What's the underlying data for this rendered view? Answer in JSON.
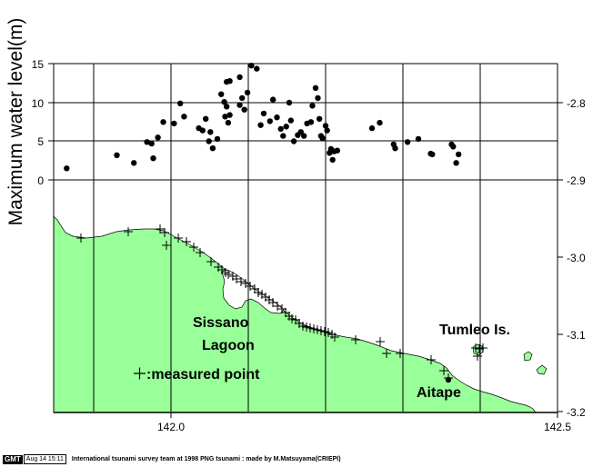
{
  "y_axis": {
    "label": "Maximum water level(m)",
    "ticks": [
      "15",
      "10",
      "5",
      "0"
    ]
  },
  "right_axis": {
    "ticks": [
      "-2.8",
      "-2.9",
      "-3.0",
      "-3.1",
      "-3.2"
    ]
  },
  "x_axis": {
    "ticks": [
      "142.0",
      "142.5"
    ]
  },
  "labels": {
    "lagoon_line1": "Sissano",
    "lagoon_line2": "Lagoon",
    "tumleo": "Tumleo Is.",
    "aitape": "Aitape",
    "legend": ":measured point"
  },
  "colors": {
    "land": "#99FF99",
    "grid": "#000000",
    "points": "#000000"
  },
  "footer": {
    "badge": "GMT",
    "date": "Aug 14 15:11",
    "credit": "International tsunami survey team at 1998 PNG tsunami : made by M.Matsuyama(CRIEPI)"
  },
  "chart_data": {
    "type": "scatter",
    "xlim": [
      141.83,
      142.5
    ],
    "ylim_water_level_m": [
      0,
      15
    ],
    "ylim_latitude": [
      -3.2,
      -2.75
    ],
    "x_ticks": [
      142.0,
      142.5
    ],
    "water_level_ticks": [
      0,
      5,
      10,
      15
    ],
    "latitude_ticks": [
      -2.8,
      -2.9,
      -3.0,
      -3.1,
      -3.2
    ],
    "grid": true,
    "series": [
      {
        "values": [
          [
            141.865,
            1.5
          ],
          [
            141.93,
            3.2
          ],
          [
            141.952,
            2.2
          ],
          [
            141.969,
            4.9
          ],
          [
            141.975,
            4.7
          ],
          [
            141.977,
            2.8
          ],
          [
            141.983,
            5.5
          ],
          [
            141.99,
            7.5
          ],
          [
            142.004,
            7.3
          ],
          [
            142.012,
            9.9
          ],
          [
            142.017,
            8.2
          ],
          [
            142.036,
            6.7
          ],
          [
            142.041,
            6.4
          ],
          [
            142.045,
            7.9
          ],
          [
            142.049,
            5.0
          ],
          [
            142.051,
            6.2
          ],
          [
            142.054,
            4.1
          ],
          [
            142.06,
            5.3
          ],
          [
            142.065,
            11.1
          ],
          [
            142.069,
            10.1
          ],
          [
            142.072,
            12.7
          ],
          [
            142.076,
            12.8
          ],
          [
            142.072,
            9.5
          ],
          [
            142.07,
            8.2
          ],
          [
            142.076,
            8.4
          ],
          [
            142.074,
            7.4
          ],
          [
            142.089,
            13.3
          ],
          [
            142.092,
            10.6
          ],
          [
            142.089,
            9.7
          ],
          [
            142.095,
            9.1
          ],
          [
            142.099,
            11.3
          ],
          [
            142.104,
            14.8
          ],
          [
            142.111,
            14.4
          ],
          [
            142.116,
            7.1
          ],
          [
            142.12,
            8.6
          ],
          [
            142.128,
            7.6
          ],
          [
            142.132,
            10.4
          ],
          [
            142.137,
            8.1
          ],
          [
            142.142,
            6.6
          ],
          [
            142.145,
            5.7
          ],
          [
            142.149,
            6.9
          ],
          [
            142.153,
            10.0
          ],
          [
            142.155,
            7.7
          ],
          [
            142.159,
            5.0
          ],
          [
            142.164,
            5.8
          ],
          [
            142.168,
            6.2
          ],
          [
            142.172,
            5.7
          ],
          [
            142.176,
            7.3
          ],
          [
            142.181,
            7.5
          ],
          [
            142.183,
            9.6
          ],
          [
            142.187,
            11.9
          ],
          [
            142.19,
            10.6
          ],
          [
            142.192,
            7.9
          ],
          [
            142.194,
            5.7
          ],
          [
            142.196,
            5.4
          ],
          [
            142.2,
            7.0
          ],
          [
            142.202,
            6.4
          ],
          [
            142.205,
            3.5
          ],
          [
            142.207,
            4.0
          ],
          [
            142.209,
            2.6
          ],
          [
            142.211,
            3.7
          ],
          [
            142.215,
            3.8
          ],
          [
            142.26,
            6.7
          ],
          [
            142.27,
            7.4
          ],
          [
            142.288,
            4.6
          ],
          [
            142.29,
            4.1
          ],
          [
            142.306,
            4.9
          ],
          [
            142.32,
            5.3
          ],
          [
            142.336,
            3.4
          ],
          [
            142.338,
            3.3
          ],
          [
            142.363,
            4.6
          ],
          [
            142.365,
            4.3
          ],
          [
            142.369,
            2.2
          ],
          [
            142.372,
            3.3
          ]
        ]
      }
    ]
  }
}
